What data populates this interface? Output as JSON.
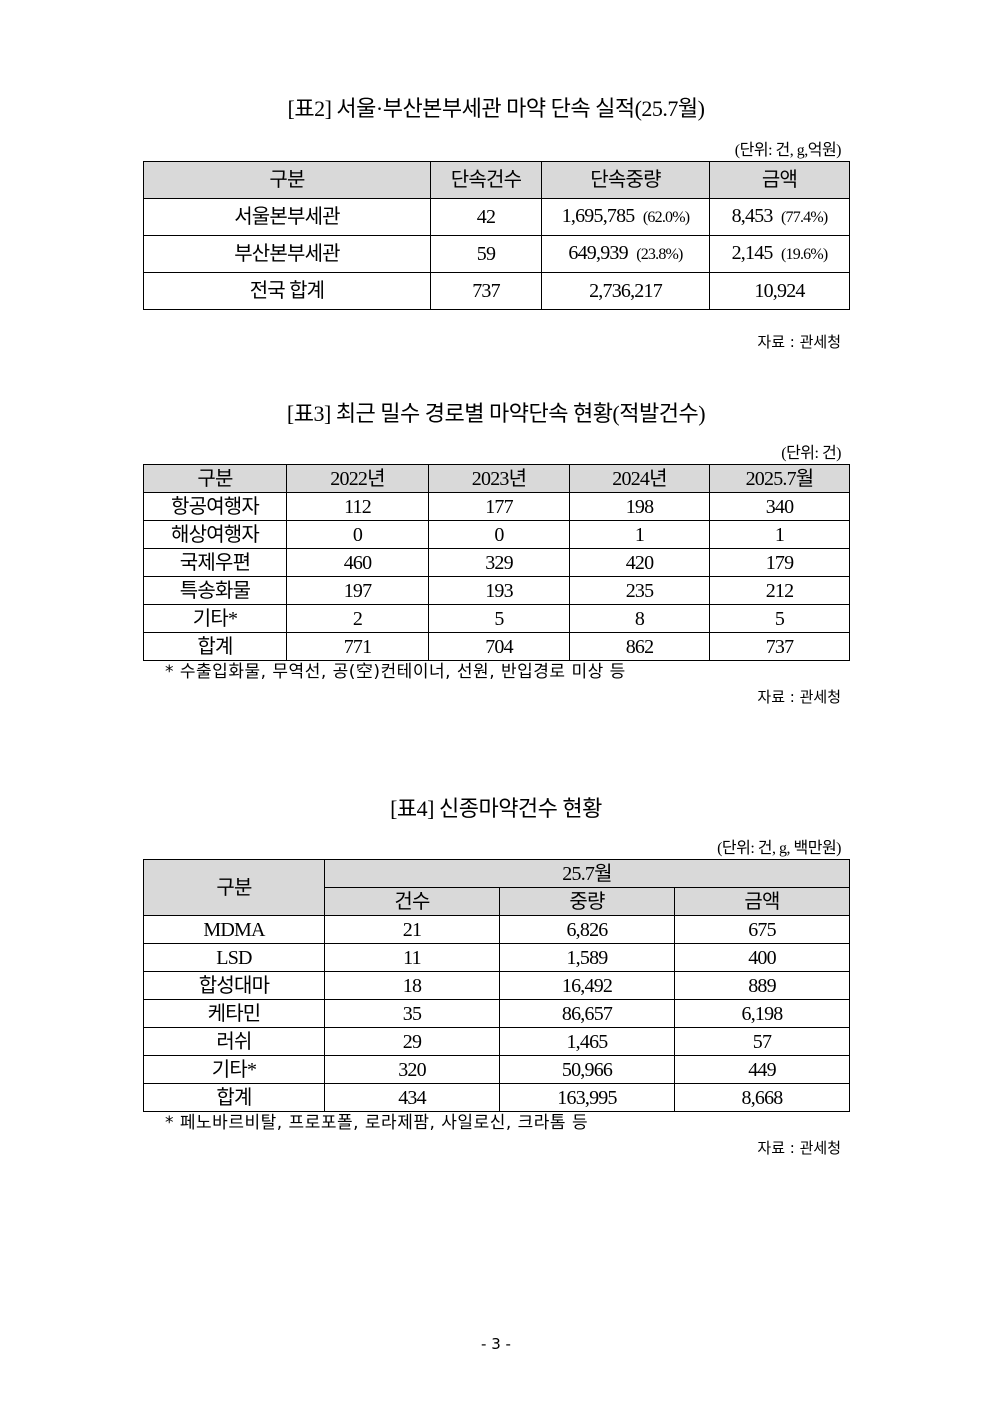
{
  "table2": {
    "title": "[표2] 서울·부산본부세관 마약 단속 실적(25.7월)",
    "unit": "(단위: 건, g,억원)",
    "headers": [
      "구분",
      "단속건수",
      "단속중량",
      "금액"
    ],
    "rows": [
      {
        "label": "서울본부세관",
        "count": "42",
        "weight": "1,695,785",
        "weight_pct": "(62.0%)",
        "amount": "8,453",
        "amount_pct": "(77.4%)"
      },
      {
        "label": "부산본부세관",
        "count": "59",
        "weight": "649,939",
        "weight_pct": "(23.8%)",
        "amount": "2,145",
        "amount_pct": "(19.6%)"
      },
      {
        "label": "전국 합계",
        "count": "737",
        "weight": "2,736,217",
        "weight_pct": "",
        "amount": "10,924",
        "amount_pct": ""
      }
    ],
    "source": "자료 : 관세청"
  },
  "table3": {
    "title": "[표3] 최근 밀수 경로별 마약단속 현황(적발건수)",
    "unit": "(단위: 건)",
    "headers": [
      "구분",
      "2022년",
      "2023년",
      "2024년",
      "2025.7월"
    ],
    "rows": [
      [
        "항공여행자",
        "112",
        "177",
        "198",
        "340"
      ],
      [
        "해상여행자",
        "0",
        "0",
        "1",
        "1"
      ],
      [
        "국제우편",
        "460",
        "329",
        "420",
        "179"
      ],
      [
        "특송화물",
        "197",
        "193",
        "235",
        "212"
      ],
      [
        "기타*",
        "2",
        "5",
        "8",
        "5"
      ],
      [
        "합계",
        "771",
        "704",
        "862",
        "737"
      ]
    ],
    "note": "* 수출입화물, 무역선, 공(空)컨테이너, 선원, 반입경로 미상 등",
    "source": "자료 : 관세청"
  },
  "table4": {
    "title": "[표4] 신종마약건수 현황",
    "unit": "(단위: 건, g, 백만원)",
    "header_label": "구분",
    "header_group": "25.7월",
    "subheaders": [
      "건수",
      "중량",
      "금액"
    ],
    "rows": [
      [
        "MDMA",
        "21",
        "6,826",
        "675"
      ],
      [
        "LSD",
        "11",
        "1,589",
        "400"
      ],
      [
        "합성대마",
        "18",
        "16,492",
        "889"
      ],
      [
        "케타민",
        "35",
        "86,657",
        "6,198"
      ],
      [
        "러쉬",
        "29",
        "1,465",
        "57"
      ],
      [
        "기타*",
        "320",
        "50,966",
        "449"
      ],
      [
        "합계",
        "434",
        "163,995",
        "8,668"
      ]
    ],
    "note": "* 페노바르비탈, 프로포폴, 로라제팜, 사일로신, 크라톰 등",
    "source": "자료 : 관세청"
  },
  "page_number": "- 3 -"
}
